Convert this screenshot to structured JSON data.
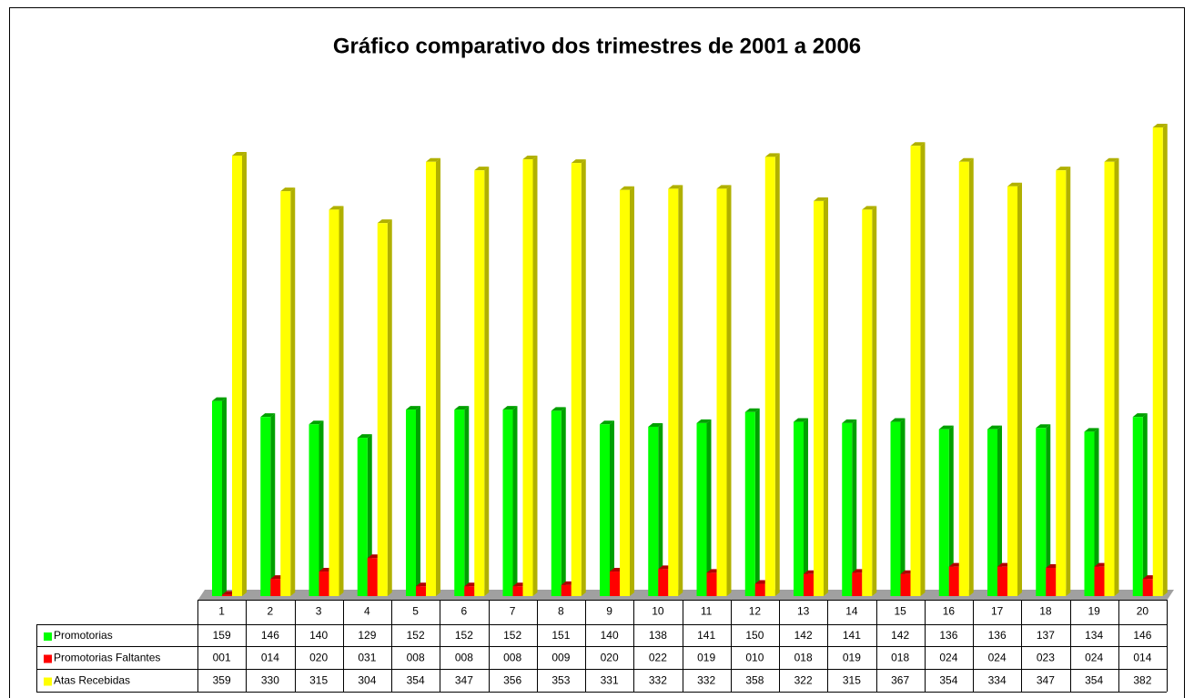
{
  "chart_data": {
    "type": "bar3d",
    "title": "Gráfico comparativo dos trimestres de 2001 a 2006",
    "categories": [
      "1",
      "2",
      "3",
      "4",
      "5",
      "6",
      "7",
      "8",
      "9",
      "10",
      "11",
      "12",
      "13",
      "14",
      "15",
      "16",
      "17",
      "18",
      "19",
      "20"
    ],
    "series": [
      {
        "name": "Promotorias",
        "color": "#00ff00",
        "side_color": "#00a000",
        "values": [
          159,
          146,
          140,
          129,
          152,
          152,
          152,
          151,
          140,
          138,
          141,
          150,
          142,
          141,
          142,
          136,
          136,
          137,
          134,
          146
        ]
      },
      {
        "name": "Promotorias Faltantes",
        "color": "#ff0000",
        "side_color": "#b00000",
        "values": [
          1,
          14,
          20,
          31,
          8,
          8,
          8,
          9,
          20,
          22,
          19,
          10,
          18,
          19,
          18,
          24,
          24,
          23,
          24,
          14
        ],
        "value_labels": [
          "001",
          "014",
          "020",
          "031",
          "008",
          "008",
          "008",
          "009",
          "020",
          "022",
          "019",
          "010",
          "018",
          "019",
          "018",
          "024",
          "024",
          "023",
          "024",
          "014"
        ]
      },
      {
        "name": "Atas Recebidas",
        "color": "#ffff00",
        "side_color": "#b0b000",
        "values": [
          359,
          330,
          315,
          304,
          354,
          347,
          356,
          353,
          331,
          332,
          332,
          358,
          322,
          315,
          367,
          354,
          334,
          347,
          354,
          382
        ]
      }
    ]
  }
}
